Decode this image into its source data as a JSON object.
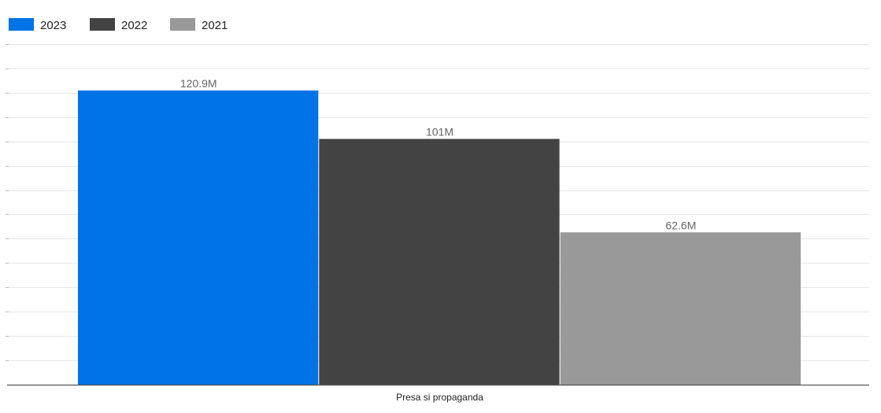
{
  "chart_data": {
    "type": "bar",
    "categories": [
      "Presa si propaganda"
    ],
    "series": [
      {
        "name": "2023",
        "values": [
          120.9
        ],
        "label": "120.9M",
        "color": "#0073E6"
      },
      {
        "name": "2022",
        "values": [
          101
        ],
        "label": "101M",
        "color": "#434343"
      },
      {
        "name": "2021",
        "values": [
          62.6
        ],
        "label": "62.6M",
        "color": "#999999"
      }
    ],
    "title": "",
    "xlabel": "",
    "ylabel": "",
    "unit": "M",
    "ylim": [
      0,
      140
    ],
    "grid": true,
    "legend_position": "top-left"
  }
}
